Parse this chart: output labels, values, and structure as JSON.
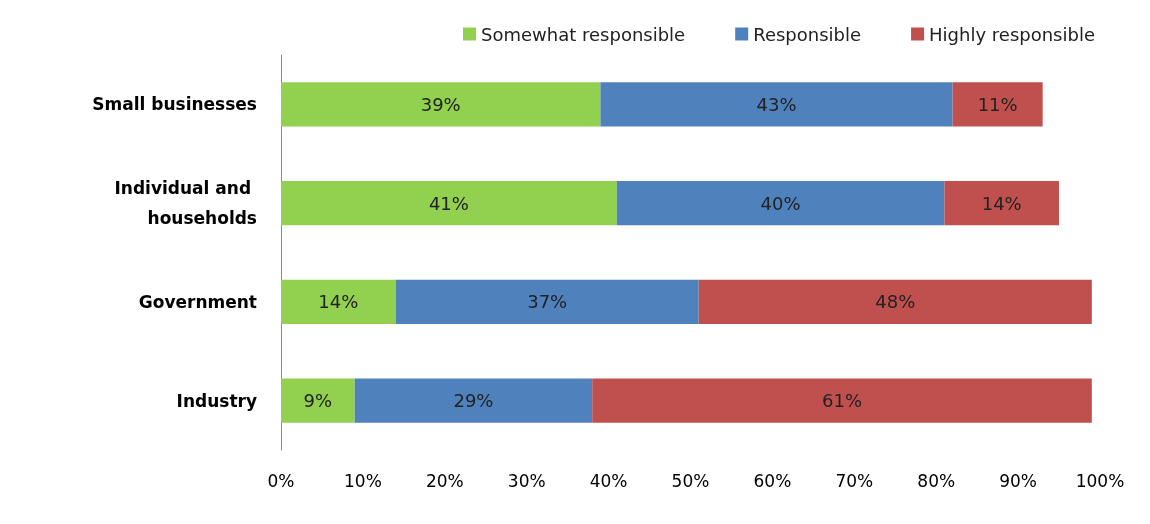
{
  "chart_data": {
    "type": "bar",
    "orientation": "horizontal",
    "stacked": true,
    "legend": "top right",
    "grid": false,
    "categories": [
      "Small businesses",
      "Individual and households",
      "Government",
      "Industry"
    ],
    "series": [
      {
        "name": "Somewhat responsible",
        "color": "#92d050",
        "values": [
          39,
          41,
          14,
          9
        ],
        "value_labels": [
          "39%",
          "41%",
          "14%",
          "9%"
        ]
      },
      {
        "name": "Responsible",
        "color": "#4f81bd",
        "values": [
          43,
          40,
          37,
          29
        ],
        "value_labels": [
          "43%",
          "40%",
          "37%",
          "29%"
        ]
      },
      {
        "name": "Highly responsible",
        "color": "#c0504d",
        "values": [
          11,
          14,
          48,
          61
        ],
        "value_labels": [
          "11%",
          "14%",
          "48%",
          "61%"
        ]
      }
    ],
    "xlim": [
      0,
      100
    ],
    "xticks": [
      {
        "value": 0,
        "label": "0%"
      },
      {
        "value": 10,
        "label": "10%"
      },
      {
        "value": 20,
        "label": "20%"
      },
      {
        "value": 30,
        "label": "30%"
      },
      {
        "value": 40,
        "label": "40%"
      },
      {
        "value": 50,
        "label": "50%"
      },
      {
        "value": 60,
        "label": "60%"
      },
      {
        "value": 70,
        "label": "70%"
      },
      {
        "value": 80,
        "label": "80%"
      },
      {
        "value": 90,
        "label": "90%"
      },
      {
        "value": 100,
        "label": "100%"
      }
    ]
  }
}
